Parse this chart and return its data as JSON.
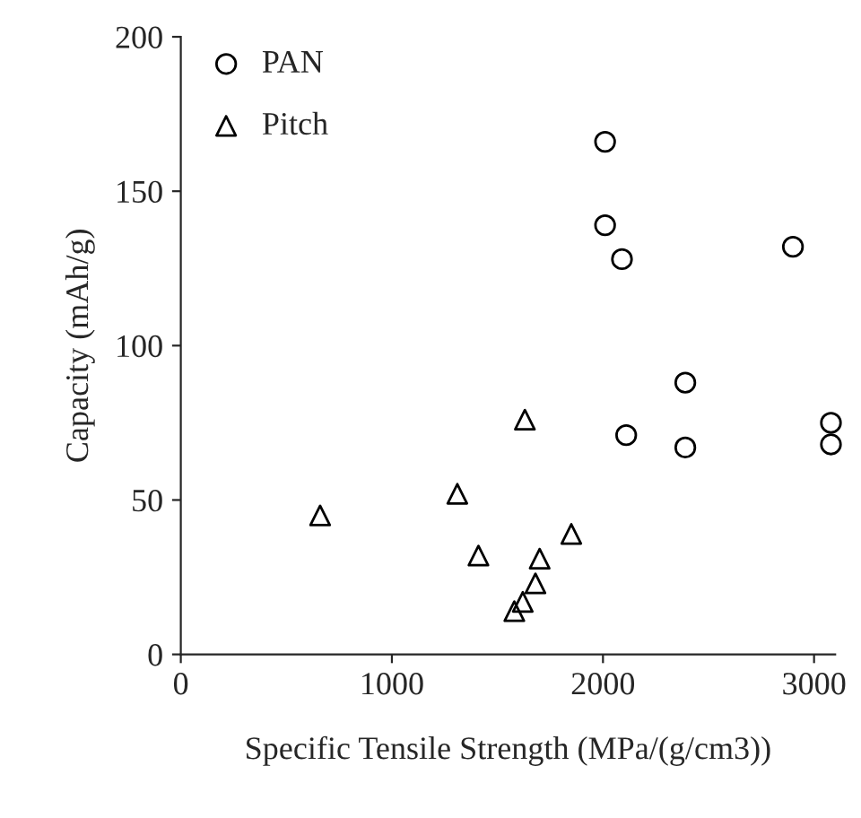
{
  "chart_data": {
    "type": "scatter",
    "xlabel": "Specific Tensile Strength (MPa/(g/cm3))",
    "ylabel": "Capacity (mAh/g)",
    "xlim": [
      0,
      3100
    ],
    "xticks": [
      0,
      1000,
      2000,
      3000
    ],
    "ylim": [
      0,
      200
    ],
    "yticks": [
      0,
      50,
      100,
      150,
      200
    ],
    "grid": false,
    "legend": "top left",
    "series": [
      {
        "name": "PAN",
        "marker": "circle",
        "color": "#000000",
        "x": [
          2010,
          2010,
          2090,
          2900,
          2390,
          2110,
          2390,
          3080,
          3080
        ],
        "values": [
          166,
          139,
          128,
          132,
          88,
          71,
          67,
          75,
          68
        ]
      },
      {
        "name": "Pitch",
        "marker": "triangle",
        "color": "#000000",
        "x": [
          660,
          1310,
          1410,
          1630,
          1700,
          1850,
          1680,
          1620,
          1580
        ],
        "values": [
          45,
          52,
          32,
          76,
          31,
          39,
          23,
          17,
          14
        ]
      }
    ]
  }
}
